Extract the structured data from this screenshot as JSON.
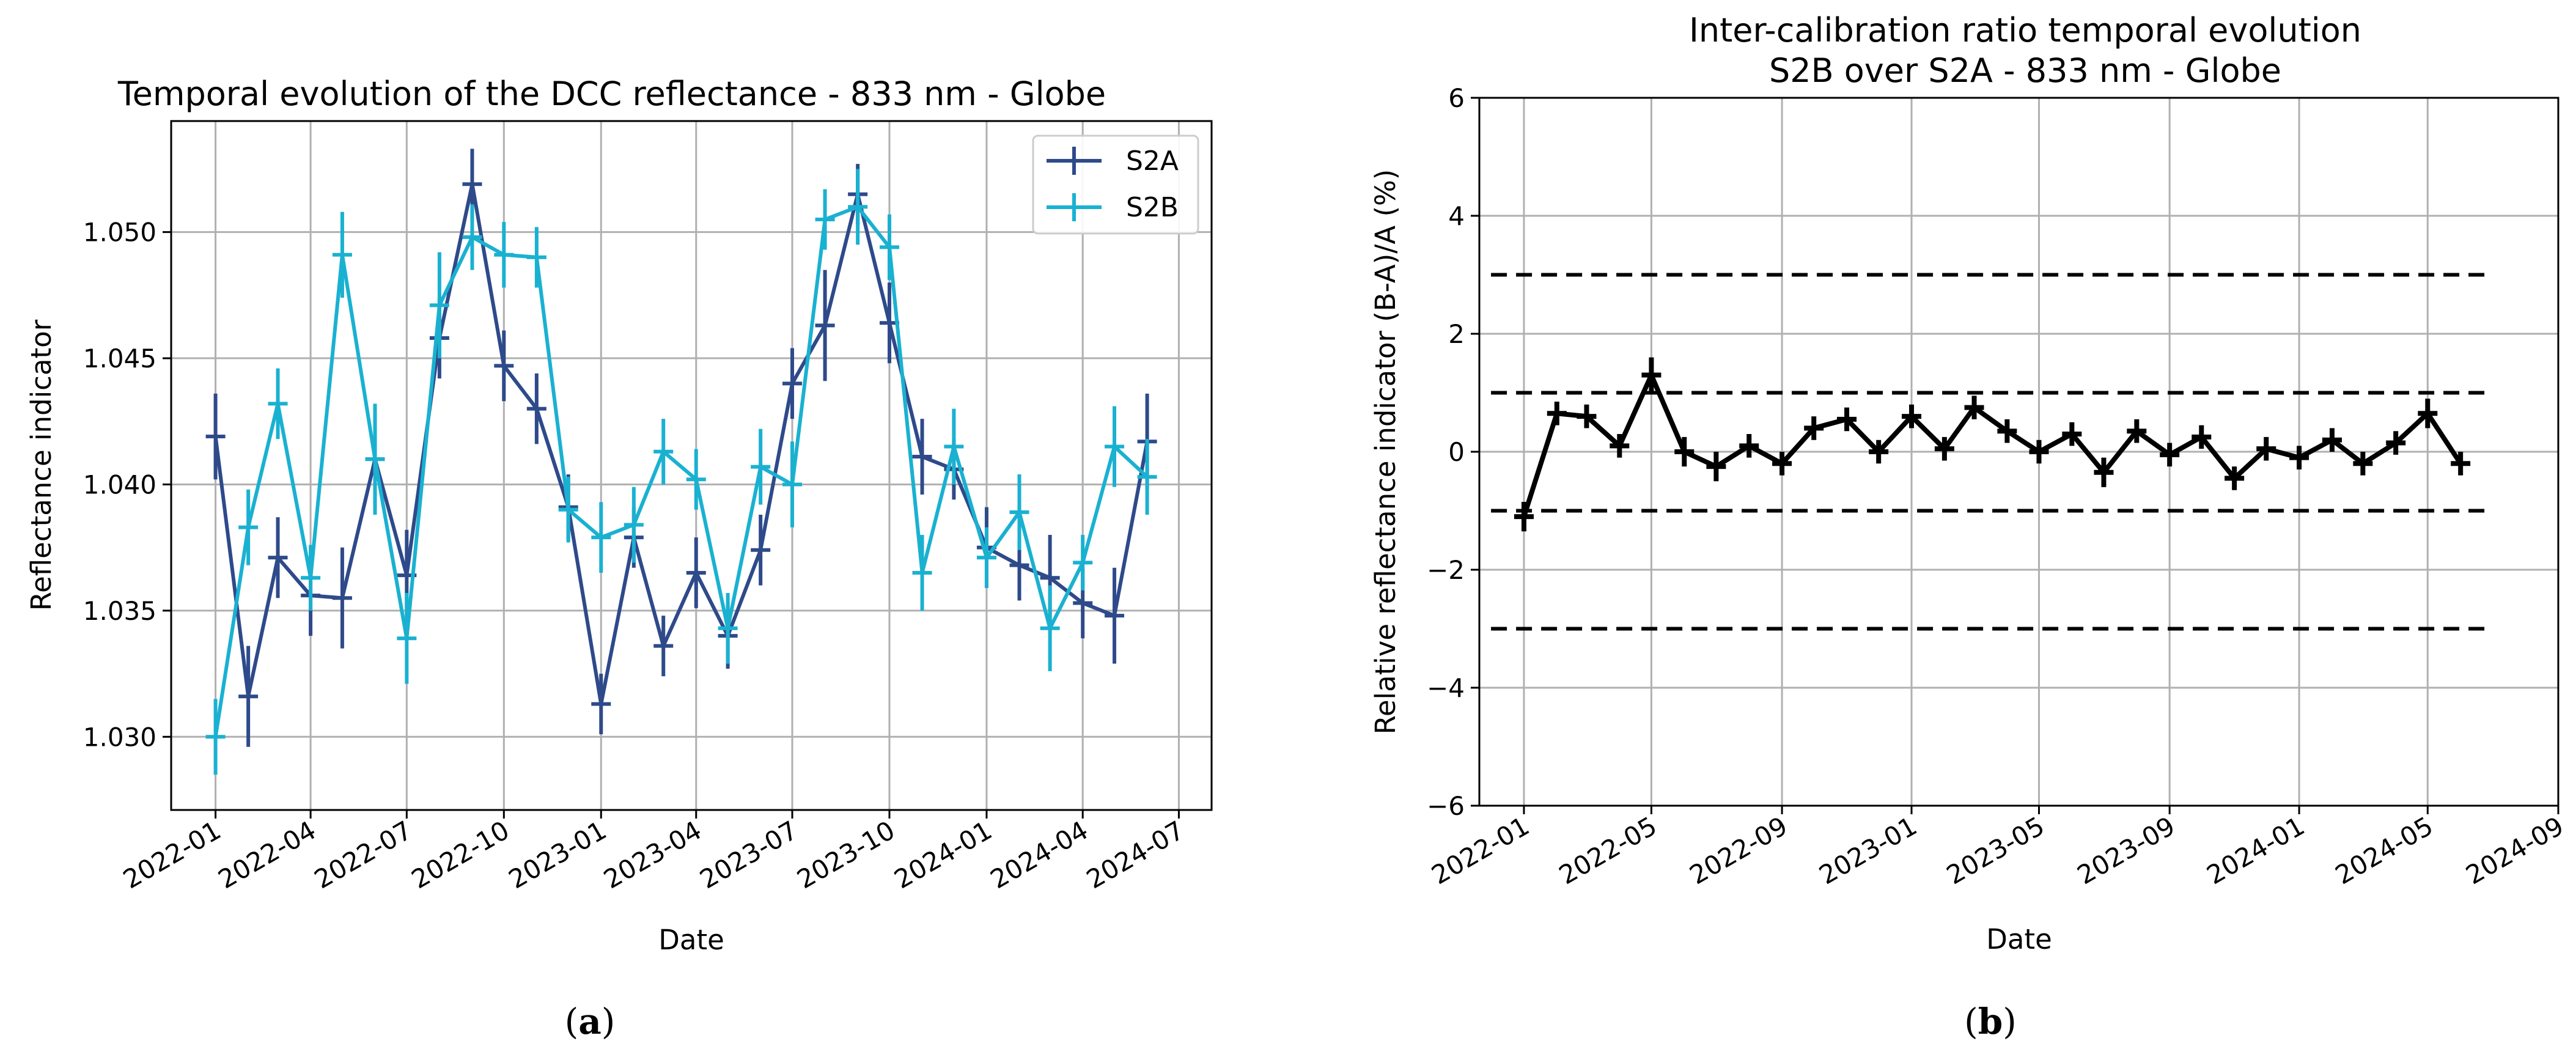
{
  "chart_data": [
    {
      "type": "line",
      "title": "Temporal evolution of the DCC reflectance - 833 nm - Globe",
      "xlabel": "Date",
      "ylabel": "Reflectance indicator",
      "caption_label": "a",
      "xlim": [
        "2021-11-20",
        "2024-08-01"
      ],
      "ylim": [
        1.0271,
        1.0544
      ],
      "xticks": [
        "2022-01",
        "2022-04",
        "2022-07",
        "2022-10",
        "2023-01",
        "2023-04",
        "2023-07",
        "2023-10",
        "2024-01",
        "2024-04",
        "2024-07"
      ],
      "yticks": [
        1.03,
        1.035,
        1.04,
        1.045,
        1.05
      ],
      "ytick_labels": [
        "1.030",
        "1.035",
        "1.040",
        "1.045",
        "1.050"
      ],
      "grid": true,
      "legend": "top-right",
      "series": [
        {
          "name": "S2A",
          "color": "#2e4a8a",
          "x": [
            "2022-01-01",
            "2022-02-01",
            "2022-03-01",
            "2022-04-01",
            "2022-05-01",
            "2022-06-01",
            "2022-07-01",
            "2022-08-01",
            "2022-09-01",
            "2022-10-01",
            "2022-11-01",
            "2022-12-01",
            "2023-01-01",
            "2023-02-01",
            "2023-03-01",
            "2023-04-01",
            "2023-05-01",
            "2023-06-01",
            "2023-07-01",
            "2023-08-01",
            "2023-09-01",
            "2023-10-01",
            "2023-11-01",
            "2023-12-01",
            "2024-01-01",
            "2024-02-01",
            "2024-03-01",
            "2024-04-01",
            "2024-05-01",
            "2024-06-01"
          ],
          "y": [
            1.0419,
            1.0316,
            1.0371,
            1.0356,
            1.0355,
            1.041,
            1.0364,
            1.0458,
            1.0519,
            1.0447,
            1.043,
            1.0391,
            1.0313,
            1.0379,
            1.0336,
            1.0365,
            1.034,
            1.0374,
            1.044,
            1.0463,
            1.0515,
            1.0464,
            1.0411,
            1.0406,
            1.0375,
            1.0368,
            1.0363,
            1.0353,
            1.0348,
            1.0417
          ],
          "err": [
            0.0017,
            0.002,
            0.0016,
            0.0016,
            0.002,
            0.002,
            0.0018,
            0.0016,
            0.0014,
            0.0014,
            0.0014,
            0.0013,
            0.0012,
            0.0012,
            0.0012,
            0.0014,
            0.0013,
            0.0014,
            0.0014,
            0.0022,
            0.0012,
            0.0016,
            0.0015,
            0.0012,
            0.0016,
            0.0014,
            0.0017,
            0.0014,
            0.0019,
            0.0019
          ]
        },
        {
          "name": "S2B",
          "color": "#1ab1d1",
          "x": [
            "2022-01-01",
            "2022-02-01",
            "2022-03-01",
            "2022-04-01",
            "2022-05-01",
            "2022-06-01",
            "2022-07-01",
            "2022-08-01",
            "2022-09-01",
            "2022-10-01",
            "2022-11-01",
            "2022-12-01",
            "2023-01-01",
            "2023-02-01",
            "2023-03-01",
            "2023-04-01",
            "2023-05-01",
            "2023-06-01",
            "2023-07-01",
            "2023-08-01",
            "2023-09-01",
            "2023-10-01",
            "2023-11-01",
            "2023-12-01",
            "2024-01-01",
            "2024-02-01",
            "2024-03-01",
            "2024-04-01",
            "2024-05-01",
            "2024-06-01"
          ],
          "y": [
            1.03,
            1.0383,
            1.0432,
            1.0363,
            1.0491,
            1.041,
            1.0339,
            1.0471,
            1.0498,
            1.0491,
            1.049,
            1.039,
            1.0379,
            1.0384,
            1.0413,
            1.0402,
            1.0343,
            1.0407,
            1.04,
            1.0505,
            1.051,
            1.0494,
            1.0365,
            1.0415,
            1.0371,
            1.0389,
            1.0343,
            1.0369,
            1.0415,
            1.0403
          ],
          "err": [
            0.0015,
            0.0015,
            0.0014,
            0.0013,
            0.0017,
            0.0022,
            0.0018,
            0.0021,
            0.0013,
            0.0013,
            0.0012,
            0.0013,
            0.0014,
            0.0015,
            0.0013,
            0.0012,
            0.0014,
            0.0015,
            0.0017,
            0.0012,
            0.0015,
            0.0013,
            0.0015,
            0.0015,
            0.0012,
            0.0015,
            0.0017,
            0.0011,
            0.0016,
            0.0015
          ]
        }
      ]
    },
    {
      "type": "line",
      "title": "Inter-calibration ratio temporal evolution",
      "subtitle": "S2B over S2A - 833 nm - Globe",
      "xlabel": "Date",
      "ylabel": "Relative reflectance indicator (B-A)/A (%)",
      "caption_label": "b",
      "xlim": [
        "2021-11-20",
        "2024-09-01"
      ],
      "ylim": [
        -6,
        6
      ],
      "xticks": [
        "2022-01",
        "2022-05",
        "2022-09",
        "2023-01",
        "2023-05",
        "2023-09",
        "2024-01",
        "2024-05",
        "2024-09"
      ],
      "yticks": [
        -6,
        -4,
        -2,
        0,
        2,
        4,
        6
      ],
      "ytick_labels": [
        "−6",
        "−4",
        "−2",
        "0",
        "2",
        "4",
        "6"
      ],
      "grid": true,
      "reference_lines": [
        3,
        1,
        -1,
        -3
      ],
      "reference_line_range": [
        "2021-12-01",
        "2024-07-01"
      ],
      "series": [
        {
          "color": "#000000",
          "x": [
            "2022-01-01",
            "2022-02-01",
            "2022-03-01",
            "2022-04-01",
            "2022-05-01",
            "2022-06-01",
            "2022-07-01",
            "2022-08-01",
            "2022-09-01",
            "2022-10-01",
            "2022-11-01",
            "2022-12-01",
            "2023-01-01",
            "2023-02-01",
            "2023-03-01",
            "2023-04-01",
            "2023-05-01",
            "2023-06-01",
            "2023-07-01",
            "2023-08-01",
            "2023-09-01",
            "2023-10-01",
            "2023-11-01",
            "2023-12-01",
            "2024-01-01",
            "2024-02-01",
            "2024-03-01",
            "2024-04-01",
            "2024-05-01",
            "2024-06-01"
          ],
          "y": [
            -1.1,
            0.65,
            0.6,
            0.1,
            1.3,
            0.0,
            -0.25,
            0.1,
            -0.2,
            0.4,
            0.55,
            0.0,
            0.6,
            0.05,
            0.75,
            0.35,
            0.0,
            0.3,
            -0.35,
            0.35,
            -0.05,
            0.25,
            -0.45,
            0.05,
            -0.1,
            0.2,
            -0.2,
            0.15,
            0.65,
            -0.2
          ],
          "err": [
            0.25,
            0.2,
            0.2,
            0.2,
            0.3,
            0.25,
            0.25,
            0.2,
            0.2,
            0.2,
            0.2,
            0.2,
            0.2,
            0.2,
            0.2,
            0.2,
            0.2,
            0.2,
            0.25,
            0.2,
            0.2,
            0.2,
            0.2,
            0.2,
            0.2,
            0.2,
            0.2,
            0.2,
            0.25,
            0.2
          ]
        }
      ]
    }
  ]
}
